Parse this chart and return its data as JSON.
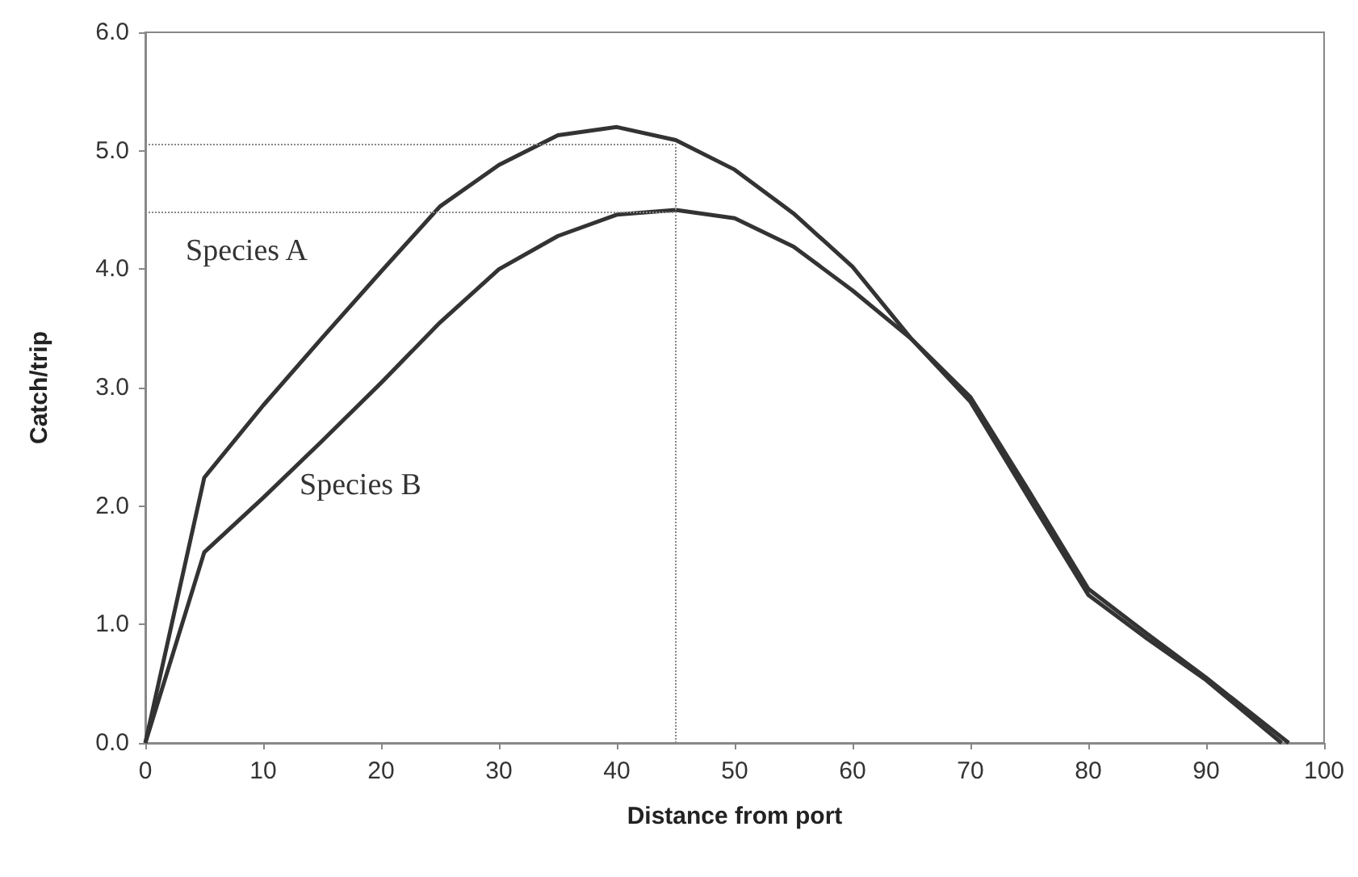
{
  "chart_data": {
    "type": "line",
    "xlabel": "Distance from port",
    "ylabel": "Catch/trip",
    "x": [
      0,
      5,
      10,
      15,
      20,
      25,
      30,
      35,
      40,
      45,
      50,
      55,
      60,
      65,
      70,
      75,
      80,
      85,
      90,
      96.4
    ],
    "series": [
      {
        "name": "Species A",
        "color": "#333333",
        "values": [
          0,
          2.24,
          2.85,
          3.42,
          3.98,
          4.53,
          4.88,
          5.13,
          5.2,
          5.09,
          4.84,
          4.47,
          4.02,
          3.41,
          2.88,
          2.06,
          1.25,
          0.88,
          0.53,
          0
        ]
      },
      {
        "name": "Species B",
        "color": "#333333",
        "x": [
          0,
          5,
          10,
          15,
          20,
          25,
          30,
          35,
          40,
          45,
          50,
          55,
          60,
          65,
          70,
          75,
          80,
          85,
          90,
          97
        ],
        "values": [
          0,
          1.61,
          2.07,
          2.55,
          3.04,
          3.55,
          4.0,
          4.28,
          4.46,
          4.5,
          4.43,
          4.19,
          3.82,
          3.41,
          2.92,
          2.12,
          1.3,
          0.92,
          0.55,
          0
        ]
      }
    ],
    "xlim": [
      0,
      100
    ],
    "xticks": [
      0,
      10,
      20,
      30,
      40,
      50,
      60,
      70,
      80,
      90,
      100
    ],
    "ylim": [
      0,
      6
    ],
    "yticks": [
      {
        "value": 0,
        "label": "0.0"
      },
      {
        "value": 1,
        "label": "1.0"
      },
      {
        "value": 2,
        "label": "2.0"
      },
      {
        "value": 3,
        "label": "3.0"
      },
      {
        "value": 4,
        "label": "4.0"
      },
      {
        "value": 5,
        "label": "5.0"
      },
      {
        "value": 6,
        "label": "6.0"
      }
    ],
    "ref_lines": [
      {
        "axis": "y",
        "value": 5.05,
        "color": "#888888",
        "line_style": "dotted"
      },
      {
        "axis": "y",
        "value": 4.48,
        "color": "#888888",
        "line_style": "dotted"
      },
      {
        "axis": "x",
        "value": 45,
        "color": "#888888",
        "line_style": "dotted"
      }
    ],
    "grid": false,
    "legend": false,
    "marker": "none",
    "line_style": "solid"
  }
}
